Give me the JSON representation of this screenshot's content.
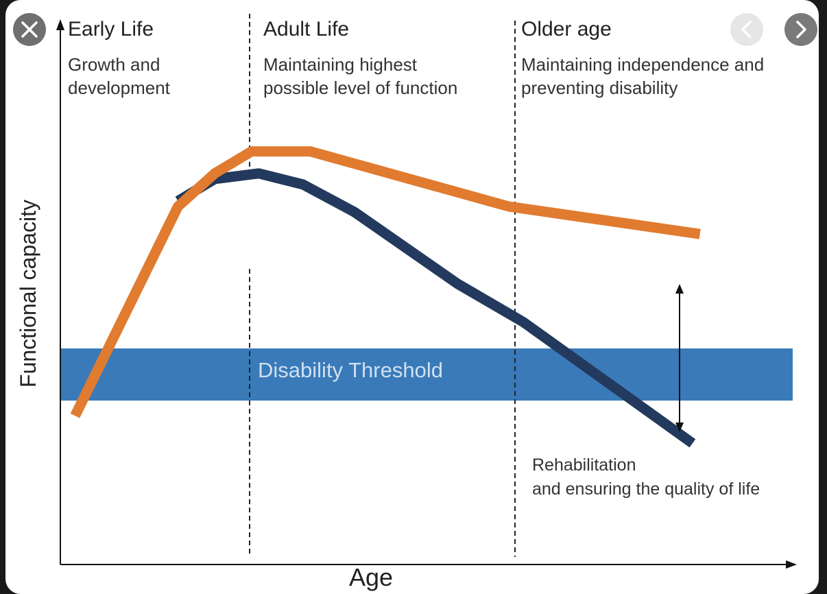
{
  "viewer": {
    "close_icon": "close-icon",
    "prev_icon": "chevron-left-icon",
    "next_icon": "chevron-right-icon",
    "frame_color": "#1a1a1a"
  },
  "chart_data": {
    "type": "line",
    "xlabel": "Age",
    "ylabel": "Functional capacity",
    "grid": false,
    "stages": [
      {
        "title": "Early Life",
        "desc": [
          "Growth and",
          "development"
        ]
      },
      {
        "title": "Adult Life",
        "desc": [
          "Maintaining highest",
          "possible level of function"
        ]
      },
      {
        "title": "Older age",
        "desc": [
          "Maintaining independence and",
          "preventing disability"
        ]
      }
    ],
    "threshold": {
      "label": "Disability Threshold",
      "color": "#3a7ab8"
    },
    "annotation": {
      "lines": [
        "Rehabilitation",
        "and ensuring the quality of life"
      ]
    },
    "series": [
      {
        "color": "#e07b30",
        "points": [
          [
            0.02,
            0.27
          ],
          [
            0.16,
            0.65
          ],
          [
            0.21,
            0.71
          ],
          [
            0.26,
            0.75
          ],
          [
            0.34,
            0.75
          ],
          [
            0.61,
            0.65
          ],
          [
            0.87,
            0.6
          ]
        ]
      },
      {
        "color": "#233a5e",
        "points": [
          [
            0.16,
            0.66
          ],
          [
            0.21,
            0.7
          ],
          [
            0.27,
            0.71
          ],
          [
            0.33,
            0.69
          ],
          [
            0.4,
            0.64
          ],
          [
            0.54,
            0.51
          ],
          [
            0.63,
            0.44
          ],
          [
            0.86,
            0.22
          ]
        ]
      }
    ]
  }
}
